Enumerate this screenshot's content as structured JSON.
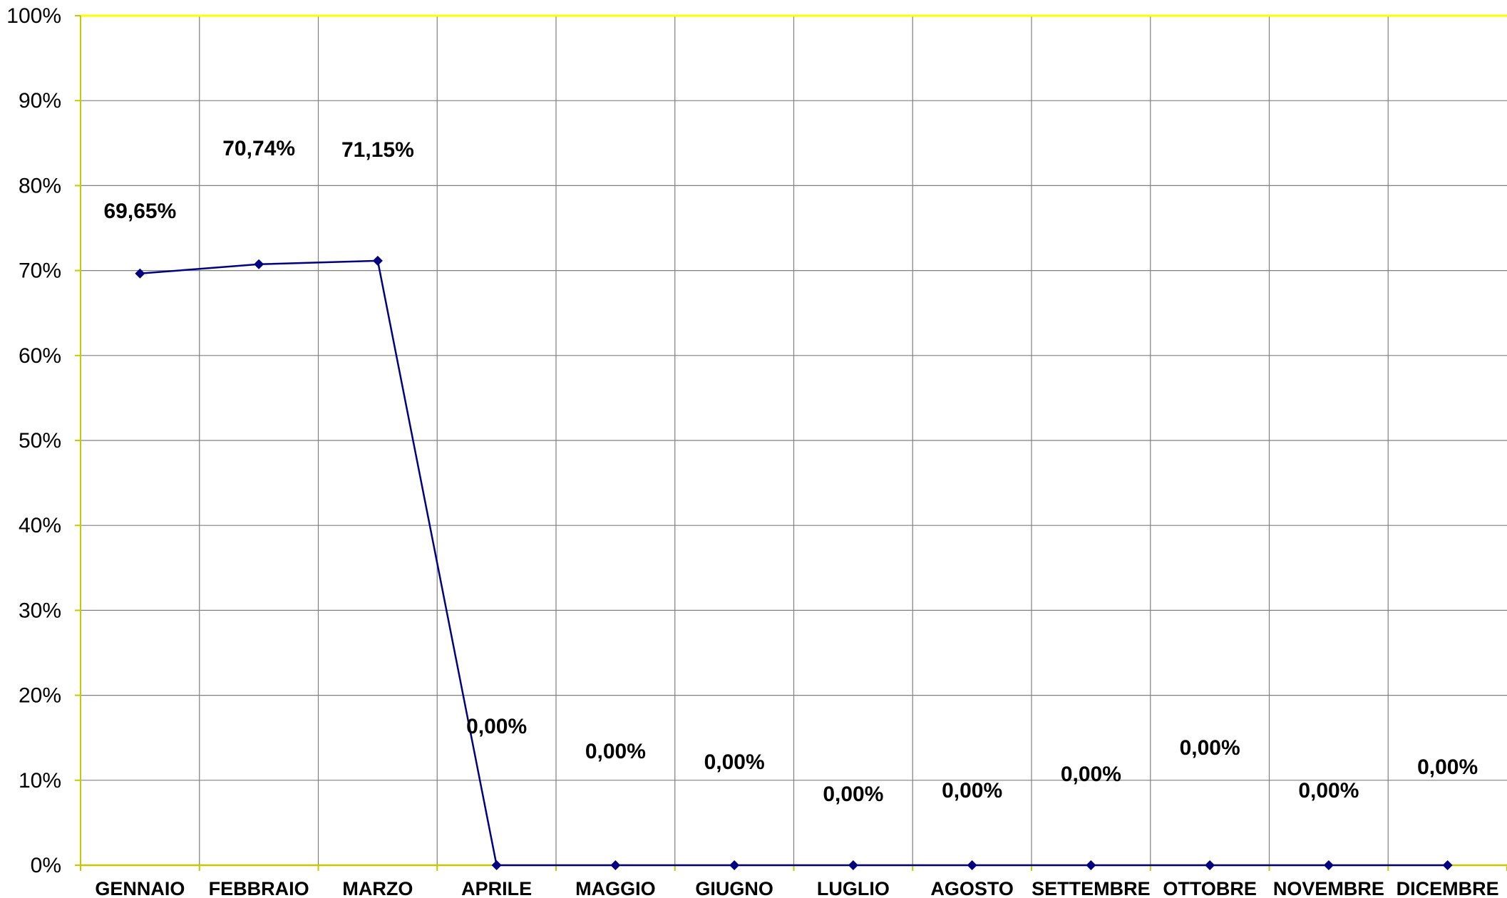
{
  "chart_data": {
    "type": "line",
    "categories": [
      "GENNAIO",
      "FEBBRAIO",
      "MARZO",
      "APRILE",
      "MAGGIO",
      "GIUGNO",
      "LUGLIO",
      "AGOSTO",
      "SETTEMBRE",
      "OTTOBRE",
      "NOVEMBRE",
      "DICEMBRE"
    ],
    "series": [
      {
        "values": [
          69.65,
          70.74,
          71.15,
          0,
          0,
          0,
          0,
          0,
          0,
          0,
          0,
          0
        ]
      }
    ],
    "data_labels": [
      "69,65%",
      "70,74%",
      "71,15%",
      "0,00%",
      "0,00%",
      "0,00%",
      "0,00%",
      "0,00%",
      "0,00%",
      "0,00%",
      "0,00%",
      "0,00%"
    ],
    "y_ticks": [
      "0%",
      "10%",
      "20%",
      "30%",
      "40%",
      "50%",
      "60%",
      "70%",
      "80%",
      "90%",
      "100%"
    ],
    "ylim": [
      0,
      100
    ],
    "grid": true,
    "legend": "none",
    "colors": {
      "line": "#000080",
      "marker": "#000080",
      "grid": "#808080",
      "axis": "#c8c800",
      "border": "#ffff00"
    }
  }
}
